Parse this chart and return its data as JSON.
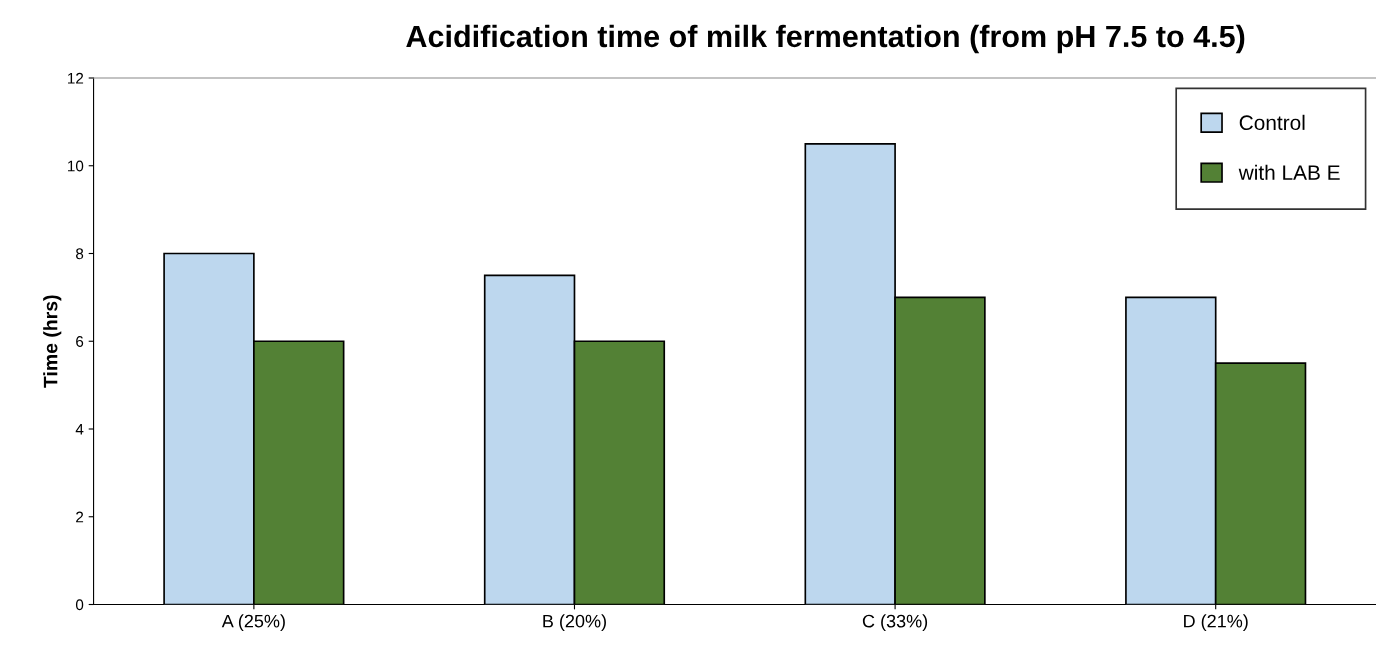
{
  "chart_data": {
    "type": "bar",
    "title": "Acidification time of milk fermentation (from pH 7.5 to 4.5)",
    "ylabel": "Time (hrs)",
    "categories": [
      "A (25%)",
      "B (20%)",
      "C (33%)",
      "D (21%)"
    ],
    "series": [
      {
        "name": "Control",
        "color": "#bdd7ee",
        "values": [
          8,
          7.5,
          10.5,
          7
        ]
      },
      {
        "name": "with LAB E",
        "color": "#538135",
        "values": [
          6,
          6,
          7,
          5.5
        ]
      }
    ],
    "ylim": [
      0,
      12
    ],
    "yticks": [
      0,
      2,
      4,
      6,
      8,
      10,
      12
    ],
    "grid": false,
    "legend": "top right"
  }
}
